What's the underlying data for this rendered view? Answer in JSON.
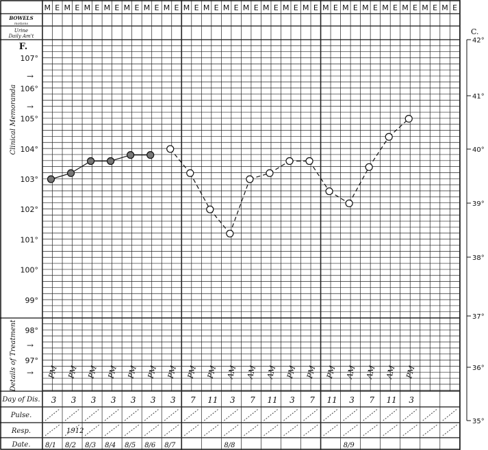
{
  "header": {
    "slot_labels": [
      "M",
      "E"
    ],
    "bowels_label": "BOWELS",
    "bowels_sub": "motions",
    "urine_label": "Urine",
    "urine_sub": "Daily Am't"
  },
  "side_labels": {
    "clinical": "Clinical Memoranda",
    "treatment": "Details of Treatment"
  },
  "rows": {
    "day_label": "Day of Dis.",
    "pulse_label": "Pulse.",
    "resp_label": "Resp.",
    "date_label": "Date."
  },
  "chart_data": {
    "type": "line",
    "left_axis_label": "F.",
    "right_axis_label": "C.",
    "y_ticks_f": [
      107,
      106,
      105,
      104,
      103,
      102,
      101,
      100,
      99,
      98,
      97
    ],
    "y_ticks_c": [
      42,
      41,
      40,
      39,
      38,
      37,
      36,
      35
    ],
    "ylim_f": [
      95.6,
      108.4
    ],
    "grid": true,
    "temperatures": [
      103.0,
      103.2,
      103.6,
      103.6,
      103.8,
      103.8,
      104.0,
      103.2,
      102.0,
      101.2,
      103.0,
      103.2,
      103.6,
      103.6,
      102.6,
      102.2,
      103.4,
      104.4,
      105.0
    ],
    "solid_points": 6,
    "times": [
      "PM",
      "PM",
      "PM",
      "PM",
      "PM",
      "PM",
      "PM",
      "PM",
      "PM",
      "AM",
      "AM",
      "AM",
      "PM",
      "PM",
      "PM",
      "AM",
      "AM",
      "AM",
      "PM"
    ],
    "day_of_dis": [
      "3",
      "3",
      "3",
      "3",
      "3",
      "3",
      "3",
      "7",
      "11",
      "3",
      "7",
      "11",
      "3",
      "7",
      "11",
      "3",
      "7",
      "11",
      "3"
    ],
    "dates": {
      "0": "8/1",
      "1": "8/2",
      "2": "8/3",
      "3": "8/4",
      "4": "8/5",
      "5": "8/6",
      "6": "8/7",
      "9": "8/8",
      "15": "8/9"
    },
    "resp_note": {
      "1": "1912"
    }
  }
}
